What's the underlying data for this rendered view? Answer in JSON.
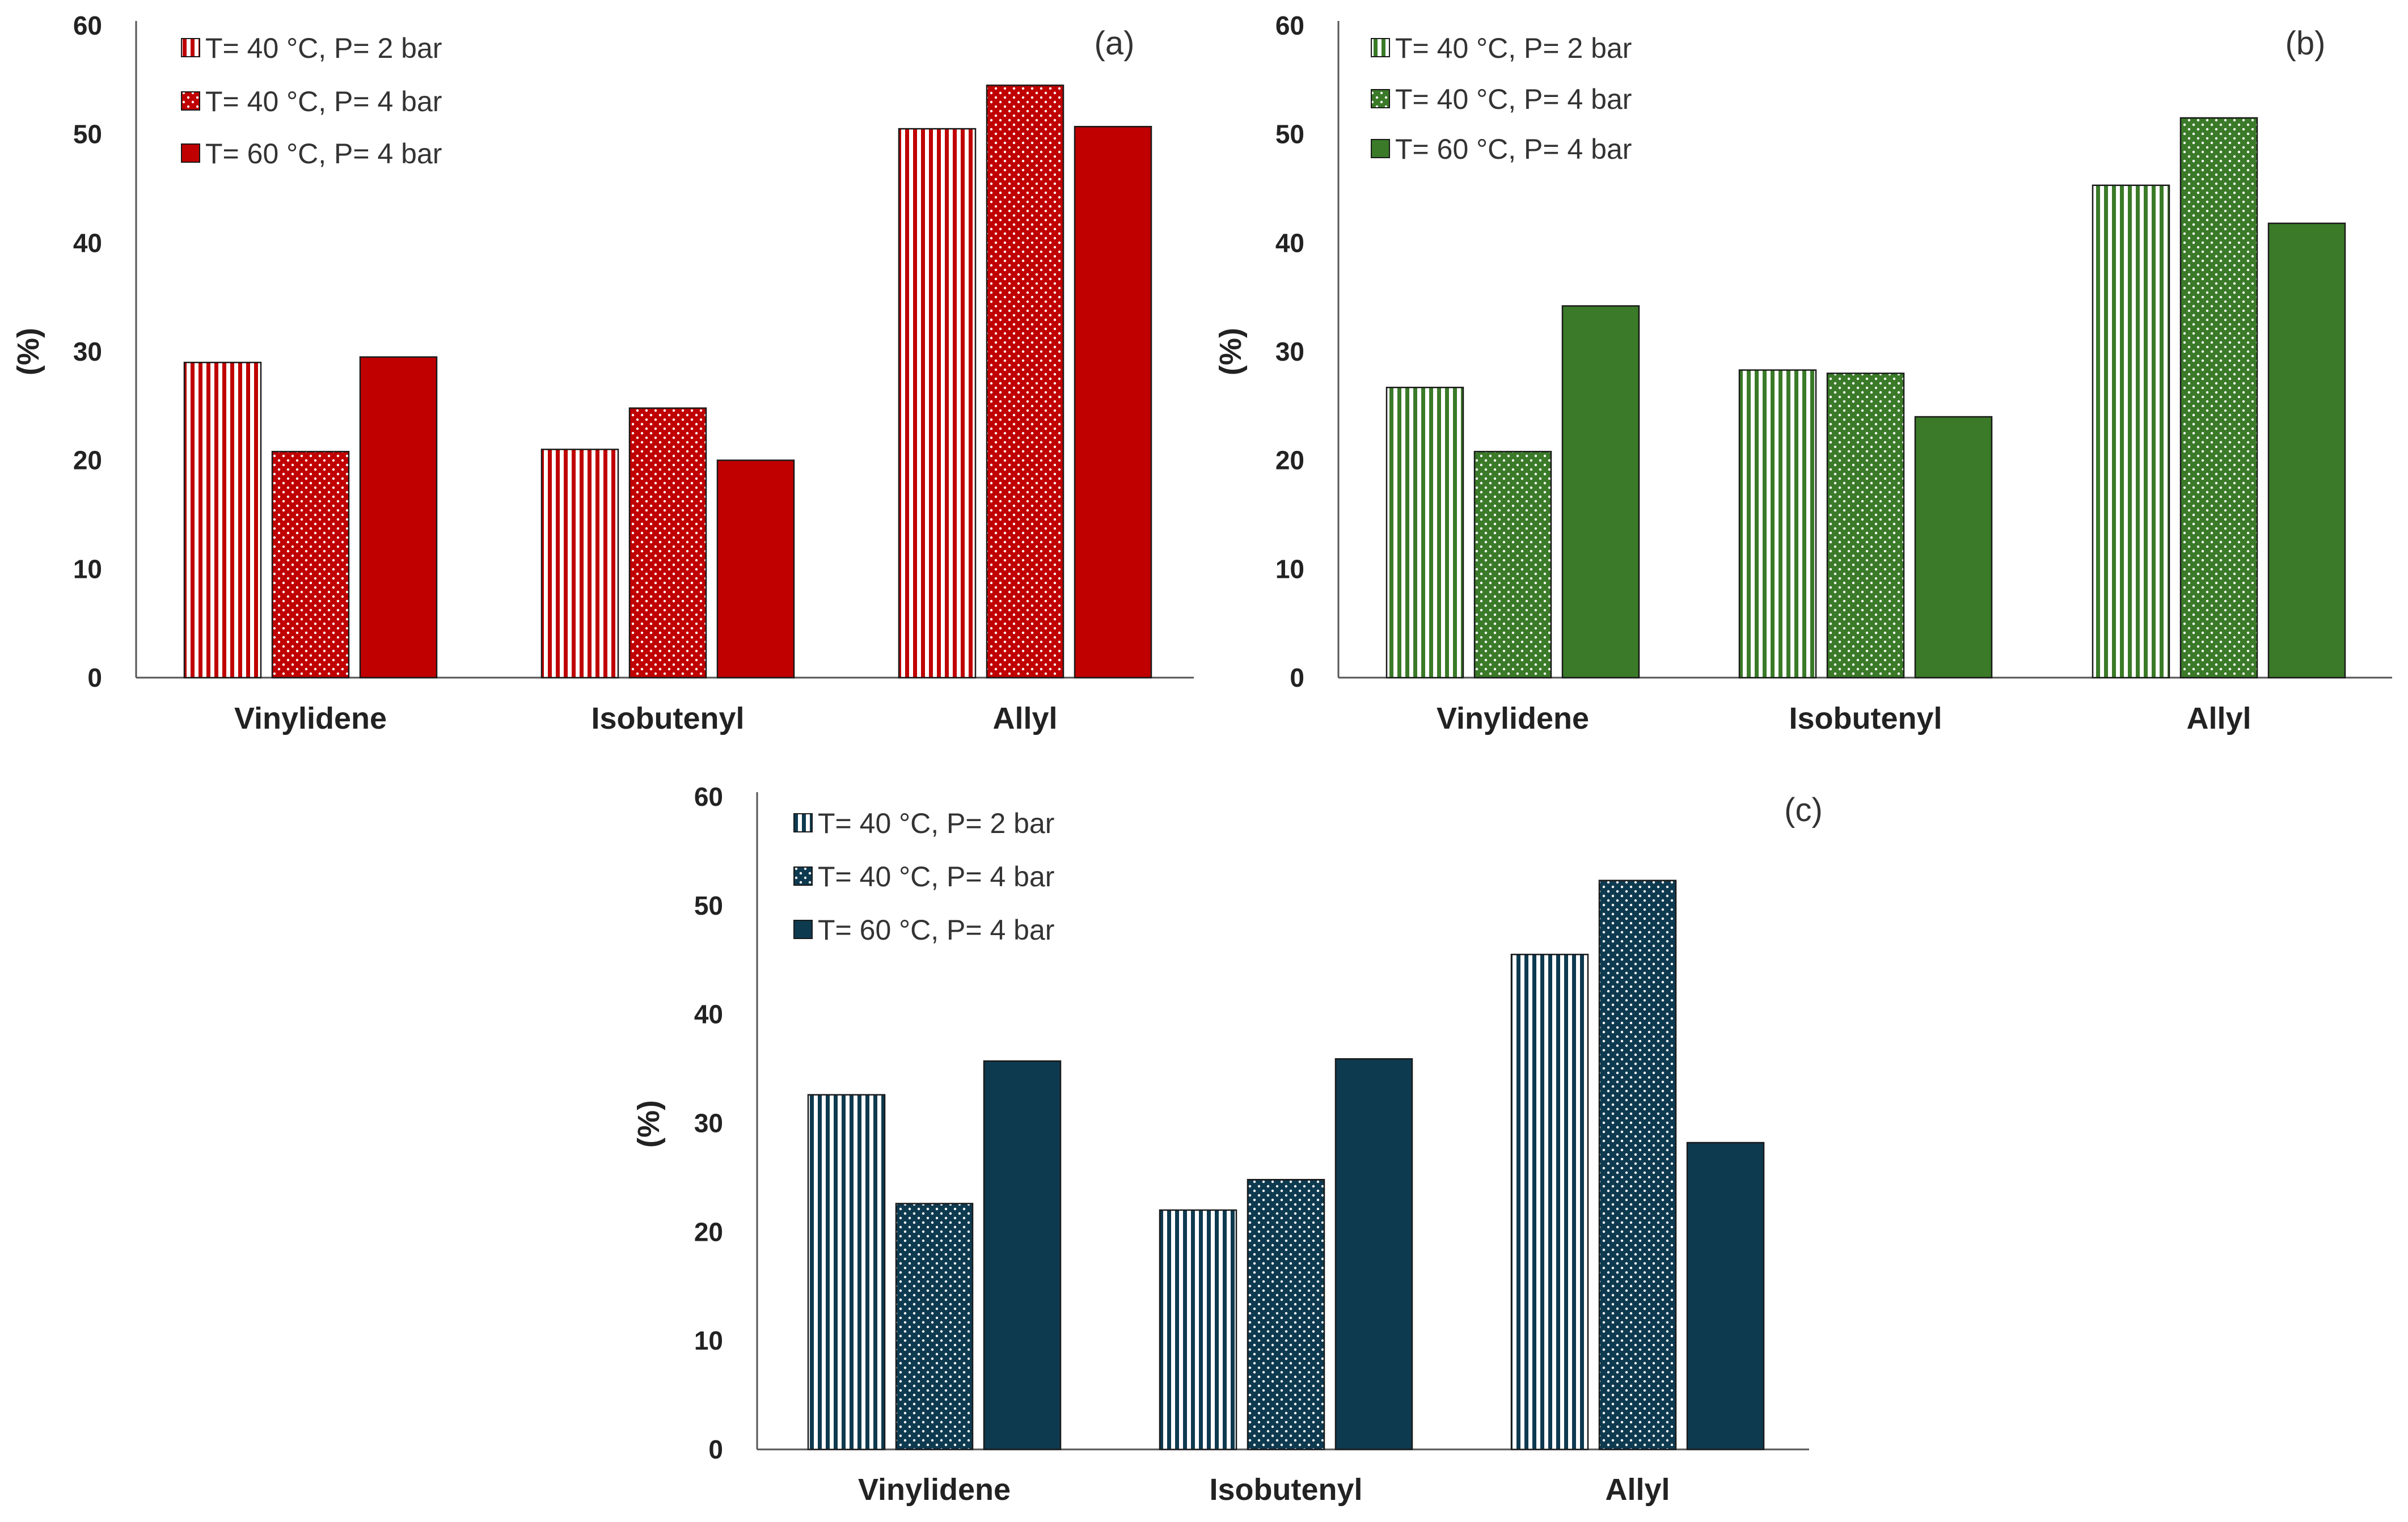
{
  "chart_data": [
    {
      "type": "bar",
      "panel": "(a)",
      "color": "#C00000",
      "ylabel": "(%)",
      "ylim": [
        0,
        60
      ],
      "yticks": [
        "0",
        "10",
        "20",
        "30",
        "40",
        "50",
        "60"
      ],
      "categories": [
        "Vinylidene",
        "Isobutenyl",
        "Allyl"
      ],
      "legend_position": "top-left",
      "series": [
        {
          "name": "T= 40 °C, P= 2 bar",
          "pattern": "vertical-stripes",
          "values": [
            29,
            21,
            50.5
          ]
        },
        {
          "name": "T= 40 °C, P= 4 bar",
          "pattern": "dots",
          "values": [
            20.8,
            24.8,
            54.5
          ]
        },
        {
          "name": "T= 60 °C, P= 4 bar",
          "pattern": "solid",
          "values": [
            29.5,
            20,
            50.7
          ]
        }
      ]
    },
    {
      "type": "bar",
      "panel": "(b)",
      "color": "#3A7A28",
      "ylabel": "(%)",
      "ylim": [
        0,
        60
      ],
      "yticks": [
        "0",
        "10",
        "20",
        "30",
        "40",
        "50",
        "60"
      ],
      "categories": [
        "Vinylidene",
        "Isobutenyl",
        "Allyl"
      ],
      "legend_position": "top-left",
      "series": [
        {
          "name": "T= 40 °C, P= 2 bar",
          "pattern": "vertical-stripes",
          "values": [
            26.7,
            28.3,
            45.3
          ]
        },
        {
          "name": "T= 40 °C, P= 4 bar",
          "pattern": "dots",
          "values": [
            20.8,
            28,
            51.5
          ]
        },
        {
          "name": "T= 60 °C, P= 4 bar",
          "pattern": "solid",
          "values": [
            34.2,
            24,
            41.8
          ]
        }
      ]
    },
    {
      "type": "bar",
      "panel": "(c)",
      "color": "#0E3A50",
      "ylabel": "(%)",
      "ylim": [
        0,
        60
      ],
      "yticks": [
        "0",
        "10",
        "20",
        "30",
        "40",
        "50",
        "60"
      ],
      "categories": [
        "Vinylidene",
        "Isobutenyl",
        "Allyl"
      ],
      "legend_position": "top-left",
      "series": [
        {
          "name": "T= 40 °C, P= 2 bar",
          "pattern": "vertical-stripes",
          "values": [
            32.6,
            22,
            45.5
          ]
        },
        {
          "name": "T= 40 °C, P= 4 bar",
          "pattern": "dots",
          "values": [
            22.6,
            24.8,
            52.3
          ]
        },
        {
          "name": "T= 60 °C, P= 4 bar",
          "pattern": "solid",
          "values": [
            35.7,
            35.9,
            28.2
          ]
        }
      ]
    }
  ]
}
